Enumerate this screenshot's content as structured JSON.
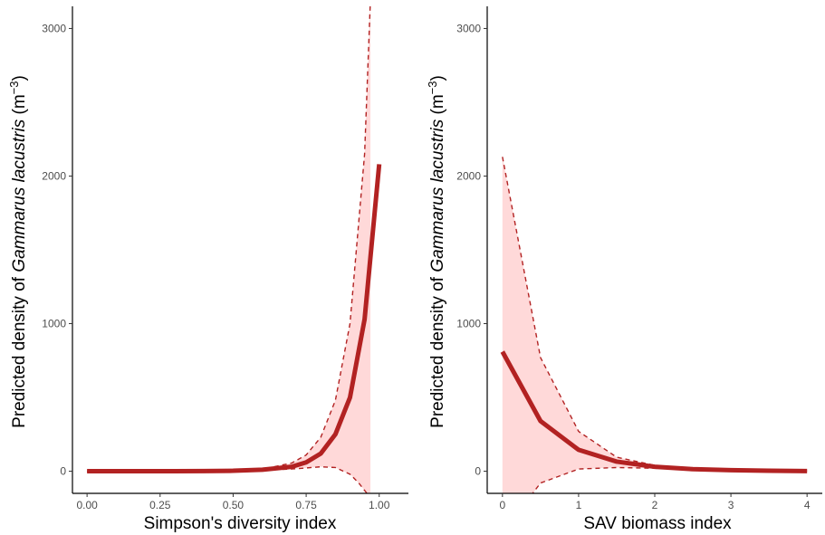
{
  "colors": {
    "line": "#b22222",
    "ribbon": "#ffd9d9",
    "ci": "#b22222",
    "axis": "#000000",
    "tick_text": "#4d4d4d"
  },
  "chart_data": [
    {
      "type": "line",
      "xlabel": "Simpson's diversity index",
      "ylabel": {
        "prefix": "Predicted density of ",
        "species": "Gammarus lacustris",
        "unit_open": " (m",
        "unit_exp": "−3",
        "unit_close": ")"
      },
      "xlim": [
        -0.05,
        1.1
      ],
      "ylim": [
        -150,
        3150
      ],
      "x_ticks": [
        0.0,
        0.25,
        0.5,
        0.75,
        1.0
      ],
      "x_tick_labels": [
        "0.00",
        "0.25",
        "0.50",
        "0.75",
        "1.00"
      ],
      "y_ticks": [
        0,
        1000,
        2000,
        3000
      ],
      "y_tick_labels": [
        "0",
        "1000",
        "2000",
        "3000"
      ],
      "grid": false,
      "series": [
        {
          "role": "fit",
          "x": [
            0.0,
            0.1,
            0.2,
            0.3,
            0.4,
            0.5,
            0.6,
            0.7,
            0.75,
            0.8,
            0.85,
            0.9,
            0.95,
            1.0
          ],
          "y": [
            0,
            0,
            0,
            0,
            1,
            3,
            10,
            30,
            60,
            120,
            250,
            500,
            1030,
            2080
          ]
        },
        {
          "role": "upper",
          "x": [
            0.0,
            0.1,
            0.2,
            0.3,
            0.4,
            0.5,
            0.6,
            0.7,
            0.75,
            0.8,
            0.85,
            0.9,
            0.95,
            0.97
          ],
          "y": [
            0,
            0,
            0,
            0,
            1,
            4,
            14,
            55,
            110,
            230,
            480,
            1000,
            2150,
            3200
          ]
        },
        {
          "role": "lower",
          "x": [
            0.0,
            0.1,
            0.2,
            0.3,
            0.4,
            0.5,
            0.6,
            0.7,
            0.75,
            0.8,
            0.85,
            0.9,
            0.93,
            0.95,
            0.97
          ],
          "y": [
            0,
            0,
            0,
            0,
            0,
            2,
            6,
            15,
            22,
            30,
            25,
            -20,
            -80,
            -130,
            -180
          ]
        }
      ]
    },
    {
      "type": "line",
      "xlabel": "SAV biomass index",
      "ylabel": {
        "prefix": "Predicted density of ",
        "species": "Gammarus lacustris",
        "unit_open": " (m",
        "unit_exp": "−3",
        "unit_close": ")"
      },
      "xlim": [
        -0.2,
        4.2
      ],
      "ylim": [
        -150,
        3150
      ],
      "x_ticks": [
        0,
        1,
        2,
        3,
        4
      ],
      "x_tick_labels": [
        "0",
        "1",
        "2",
        "3",
        "4"
      ],
      "y_ticks": [
        0,
        1000,
        2000,
        3000
      ],
      "y_tick_labels": [
        "0",
        "1000",
        "2000",
        "3000"
      ],
      "grid": false,
      "series": [
        {
          "role": "fit",
          "x": [
            0,
            0.5,
            1.0,
            1.5,
            2.0,
            2.5,
            3.0,
            3.5,
            4.0
          ],
          "y": [
            810,
            340,
            145,
            65,
            30,
            14,
            7,
            3,
            1
          ]
        },
        {
          "role": "upper",
          "x": [
            0,
            0.5,
            1.0,
            1.5,
            2.0,
            2.5,
            3.0,
            3.5,
            4.0
          ],
          "y": [
            2130,
            770,
            270,
            95,
            40,
            18,
            8,
            4,
            2
          ]
        },
        {
          "role": "lower",
          "x": [
            0,
            0.25,
            0.5,
            1.0,
            1.5,
            2.0,
            2.5,
            3.0,
            3.5,
            4.0
          ],
          "y": [
            -500,
            -250,
            -80,
            15,
            25,
            20,
            10,
            5,
            2,
            1
          ]
        }
      ]
    }
  ]
}
